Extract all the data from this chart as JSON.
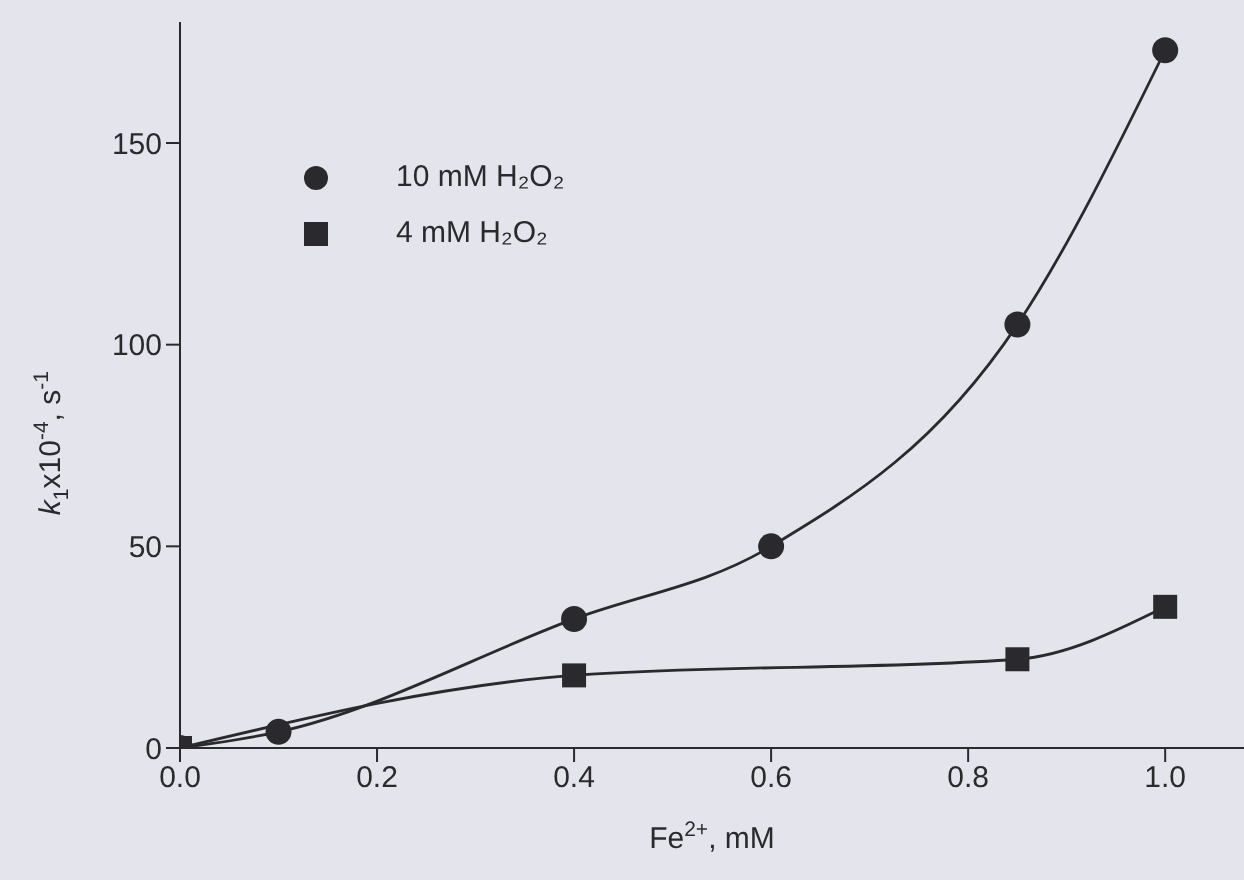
{
  "chart_data": {
    "type": "line",
    "xlabel": "Fe$^{2+}$, mM",
    "ylabel": "k$_{1}$x10$^{-4}$, s$^{-1}$",
    "series": [
      {
        "name": "10 mM H₂O₂",
        "color": "#2a2a2e",
        "marker": "circle",
        "x": [
          0,
          0.1,
          0.4,
          0.6,
          0.85,
          1.0
        ],
        "values": [
          0,
          4,
          32,
          50,
          105,
          173
        ]
      },
      {
        "name": "4 mM H₂O₂",
        "color": "#2a2a2e",
        "marker": "square",
        "x": [
          0,
          0.4,
          0.85,
          1.0
        ],
        "values": [
          0,
          18,
          22,
          35
        ]
      }
    ],
    "xlim": [
      0,
      1.08
    ],
    "ylim": [
      0,
      180
    ],
    "xticks": [
      {
        "value": 0,
        "label": "0.0"
      },
      {
        "value": 0.2,
        "label": "0.2"
      },
      {
        "value": 0.4,
        "label": "0.4"
      },
      {
        "value": 0.6,
        "label": "0.6"
      },
      {
        "value": 0.8,
        "label": "0.8"
      },
      {
        "value": 1.0,
        "label": "1.0"
      }
    ],
    "yticks": [
      0,
      50,
      100,
      150
    ],
    "grid": false,
    "legend": "top left"
  }
}
